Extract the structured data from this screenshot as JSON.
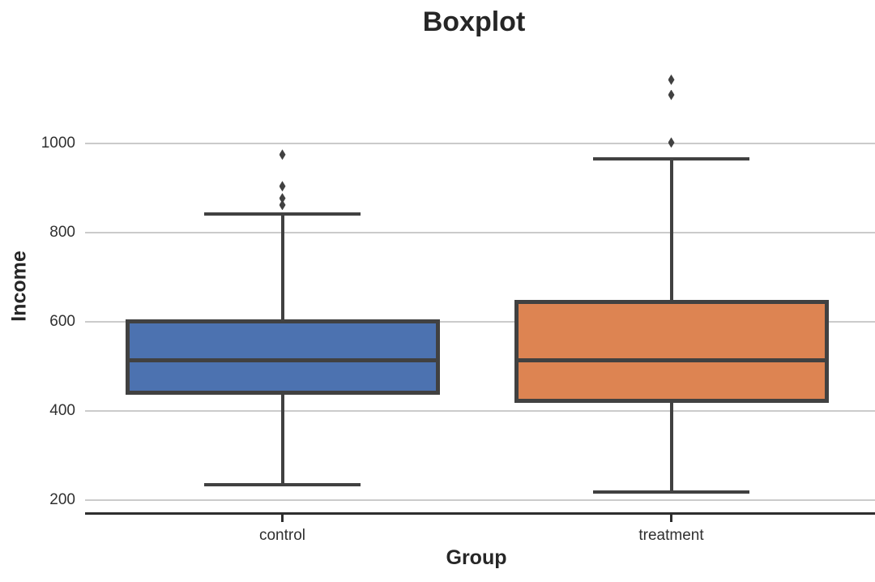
{
  "chart_data": {
    "type": "boxplot",
    "title": "Boxplot",
    "xlabel": "Group",
    "ylabel": "Income",
    "categories": [
      "control",
      "treatment"
    ],
    "yticks": [
      200,
      400,
      600,
      800,
      1000
    ],
    "ylim": [
      170,
      1205
    ],
    "grid": "horizontal-only",
    "legend": "none",
    "series": [
      {
        "name": "control",
        "whisker_low": 234,
        "q1": 441,
        "median": 514,
        "q3": 601,
        "whisker_high": 841,
        "outliers": [
          975,
          904,
          877,
          862
        ],
        "fill_color": "#4C72B0"
      },
      {
        "name": "treatment",
        "whisker_low": 218,
        "q1": 424,
        "median": 514,
        "q3": 645,
        "whisker_high": 966,
        "outliers": [
          1143,
          1109,
          1002
        ],
        "fill_color": "#DD8452"
      }
    ],
    "colors": {
      "edge": "#414141",
      "grid": "#CBCBCB",
      "spine": "#2E2E2E",
      "title_text": "#262626",
      "tick_text": "#303030",
      "background": "#FFFFFF"
    }
  }
}
